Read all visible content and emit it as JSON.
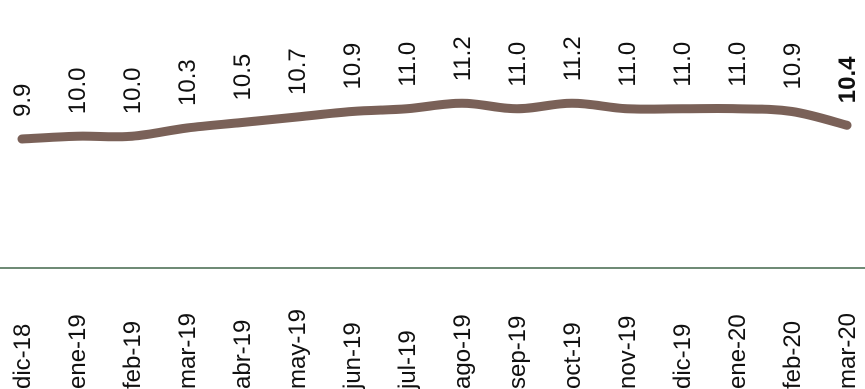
{
  "chart_data": {
    "type": "line",
    "title": "",
    "xlabel": "",
    "ylabel": "",
    "categories": [
      "dic-18",
      "ene-19",
      "feb-19",
      "mar-19",
      "abr-19",
      "may-19",
      "jun-19",
      "jul-19",
      "ago-19",
      "sep-19",
      "oct-19",
      "nov-19",
      "dic-19",
      "ene-20",
      "feb-20",
      "mar-20"
    ],
    "series": [
      {
        "values": [
          9.9,
          10.0,
          10.0,
          10.3,
          10.5,
          10.7,
          10.9,
          11.0,
          11.2,
          11.0,
          11.2,
          11.0,
          11.0,
          11.0,
          10.9,
          10.4
        ],
        "color": "#7a6158"
      }
    ],
    "data_labels": [
      "9.9",
      "10.0",
      "10.0",
      "10.3",
      "10.5",
      "10.7",
      "10.9",
      "11.0",
      "11.2",
      "11.0",
      "11.2",
      "11.0",
      "11.0",
      "11.0",
      "10.9",
      "10.4"
    ],
    "highlight_last_label": true,
    "axis_color": "#6f8b76",
    "grid": false,
    "legend": "none"
  }
}
